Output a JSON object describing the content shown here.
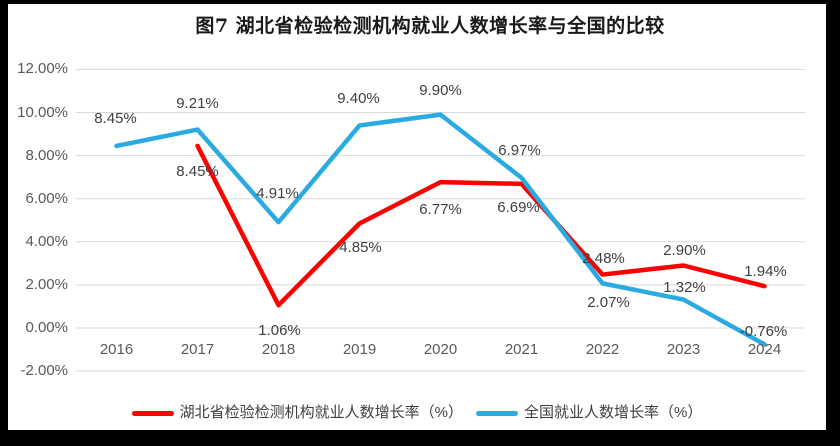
{
  "chart_data": {
    "type": "line",
    "title": "图7 湖北省检验检测机构就业人数增长率与全国的比较",
    "categories": [
      "2016",
      "2017",
      "2018",
      "2019",
      "2020",
      "2021",
      "2022",
      "2023",
      "2024"
    ],
    "y_axis": {
      "min": -2,
      "max": 12,
      "unit": "%",
      "ticks": [
        12,
        10,
        8,
        6,
        4,
        2,
        0,
        -2
      ],
      "tick_labels": [
        "12.00%",
        "10.00%",
        "8.00%",
        "6.00%",
        "4.00%",
        "2.00%",
        "0.00%",
        "-2.00%"
      ]
    },
    "grid": "horizontal",
    "legend_position": "bottom",
    "series": [
      {
        "id": "hubei",
        "name": "湖北省检验检测机构就业人数增长率（%）",
        "color": "#FE0000",
        "values": [
          null,
          8.45,
          1.06,
          4.85,
          6.77,
          6.69,
          2.48,
          2.9,
          1.94
        ],
        "point_labels": [
          null,
          "8.45%",
          "1.06%",
          "4.85%",
          "6.77%",
          "6.69%",
          "2.48%",
          "2.90%",
          "1.94%"
        ]
      },
      {
        "id": "national",
        "name": "全国就业人数增长率（%）",
        "color": "#29ABE2",
        "values": [
          8.45,
          9.21,
          4.91,
          9.4,
          9.9,
          6.97,
          2.07,
          1.32,
          -0.76
        ],
        "point_labels": [
          "8.45%",
          "9.21%",
          "4.91%",
          "9.40%",
          "9.90%",
          "6.97%",
          "2.07%",
          "1.32%",
          "-0.76%"
        ]
      }
    ]
  },
  "colors": {
    "frame_border": "#000000",
    "background": "#ffffff",
    "gridline": "#D9D9D9",
    "axis_text": "#595959",
    "data_label_text": "#404040",
    "title_text": "#1a1a1a"
  }
}
